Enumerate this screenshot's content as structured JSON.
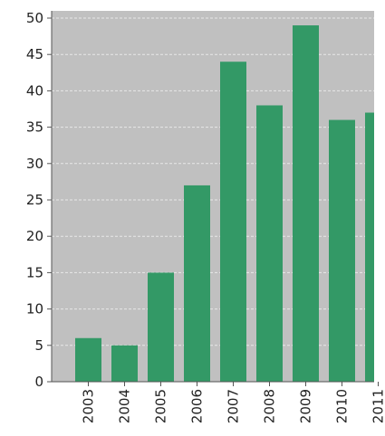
{
  "chart_data": {
    "type": "bar",
    "title": "",
    "xlabel": "",
    "ylabel": "",
    "categories": [
      "2003",
      "2004",
      "2005",
      "2006",
      "2007",
      "2008",
      "2009",
      "2010",
      "2011"
    ],
    "values": [
      6,
      5,
      15,
      27,
      44,
      38,
      49,
      36,
      37
    ],
    "ylim": [
      0,
      50
    ],
    "yticks": [
      0,
      5,
      10,
      15,
      20,
      25,
      30,
      35,
      40,
      45,
      50
    ],
    "grid": true,
    "colors": {
      "bar": "#339966",
      "plot_background": "#c0c0c0",
      "grid": "#e8e8e8",
      "axis": "#555555"
    }
  }
}
